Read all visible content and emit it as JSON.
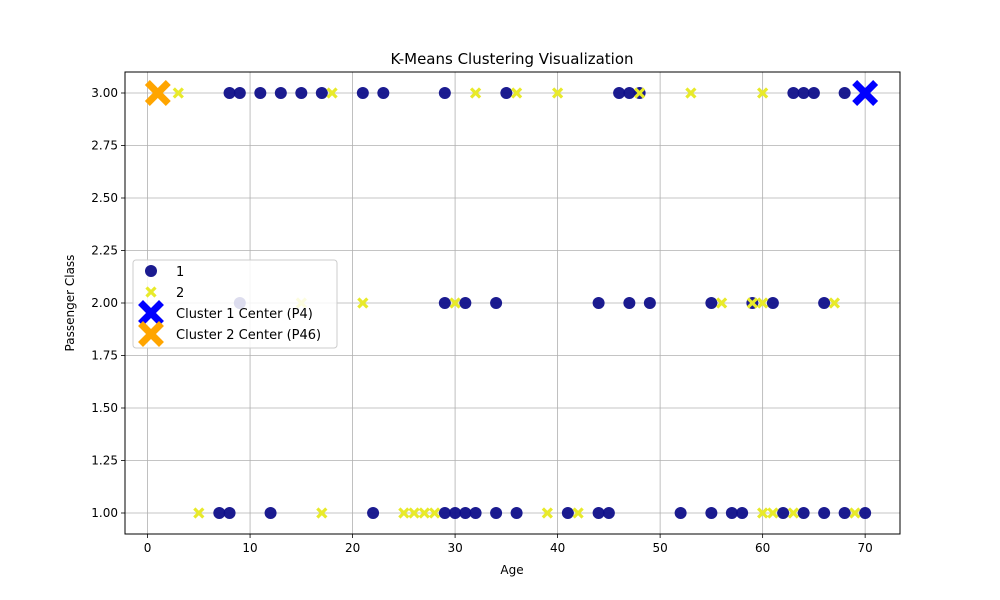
{
  "chart_data": {
    "type": "scatter",
    "title": "K-Means Clustering Visualization",
    "xlabel": "Age",
    "ylabel": "Passenger Class",
    "xlim": [
      -2.2,
      73.4
    ],
    "ylim": [
      0.9,
      3.1
    ],
    "x_ticks": [
      0,
      10,
      20,
      30,
      40,
      50,
      60,
      70
    ],
    "x_tick_labels": [
      "0",
      "10",
      "20",
      "30",
      "40",
      "50",
      "60",
      "70"
    ],
    "y_ticks": [
      1.0,
      1.25,
      1.5,
      1.75,
      2.0,
      2.25,
      2.5,
      2.75,
      3.0
    ],
    "y_tick_labels": [
      "1.00",
      "1.25",
      "1.50",
      "1.75",
      "2.00",
      "2.25",
      "2.50",
      "2.75",
      "3.00"
    ],
    "grid": true,
    "legend_position": "center-left",
    "series": [
      {
        "name": "1",
        "marker": "circle",
        "color": "#0f0f8a",
        "points": [
          [
            8,
            3
          ],
          [
            9,
            3
          ],
          [
            11,
            3
          ],
          [
            13,
            3
          ],
          [
            15,
            3
          ],
          [
            17,
            3
          ],
          [
            21,
            3
          ],
          [
            23,
            3
          ],
          [
            29,
            3
          ],
          [
            35,
            3
          ],
          [
            46,
            3
          ],
          [
            47,
            3
          ],
          [
            48,
            3
          ],
          [
            63,
            3
          ],
          [
            64,
            3
          ],
          [
            65,
            3
          ],
          [
            68,
            3
          ],
          [
            9,
            2
          ],
          [
            29,
            2
          ],
          [
            31,
            2
          ],
          [
            34,
            2
          ],
          [
            44,
            2
          ],
          [
            47,
            2
          ],
          [
            49,
            2
          ],
          [
            55,
            2
          ],
          [
            59,
            2
          ],
          [
            61,
            2
          ],
          [
            66,
            2
          ],
          [
            7,
            1
          ],
          [
            8,
            1
          ],
          [
            12,
            1
          ],
          [
            22,
            1
          ],
          [
            29,
            1
          ],
          [
            30,
            1
          ],
          [
            31,
            1
          ],
          [
            32,
            1
          ],
          [
            34,
            1
          ],
          [
            36,
            1
          ],
          [
            41,
            1
          ],
          [
            44,
            1
          ],
          [
            45,
            1
          ],
          [
            52,
            1
          ],
          [
            55,
            1
          ],
          [
            57,
            1
          ],
          [
            58,
            1
          ],
          [
            62,
            1
          ],
          [
            64,
            1
          ],
          [
            66,
            1
          ],
          [
            68,
            1
          ],
          [
            70,
            1
          ]
        ]
      },
      {
        "name": "2",
        "marker": "x",
        "color": "#e8ea2a",
        "points": [
          [
            1,
            3
          ],
          [
            3,
            3
          ],
          [
            18,
            3
          ],
          [
            32,
            3
          ],
          [
            36,
            3
          ],
          [
            40,
            3
          ],
          [
            48,
            3
          ],
          [
            53,
            3
          ],
          [
            60,
            3
          ],
          [
            15,
            2
          ],
          [
            21,
            2
          ],
          [
            30,
            2
          ],
          [
            56,
            2
          ],
          [
            59,
            2
          ],
          [
            60,
            2
          ],
          [
            67,
            2
          ],
          [
            5,
            1
          ],
          [
            17,
            1
          ],
          [
            25,
            1
          ],
          [
            26,
            1
          ],
          [
            27,
            1
          ],
          [
            28,
            1
          ],
          [
            39,
            1
          ],
          [
            42,
            1
          ],
          [
            60,
            1
          ],
          [
            61,
            1
          ],
          [
            63,
            1
          ],
          [
            69,
            1
          ]
        ]
      },
      {
        "name": "Cluster 1 Center (P4)",
        "marker": "X",
        "color": "#0000ff",
        "points": [
          [
            70,
            3
          ]
        ]
      },
      {
        "name": "Cluster 2 Center (P46)",
        "marker": "X",
        "color": "#ffa500",
        "points": [
          [
            1,
            3
          ]
        ]
      }
    ]
  }
}
